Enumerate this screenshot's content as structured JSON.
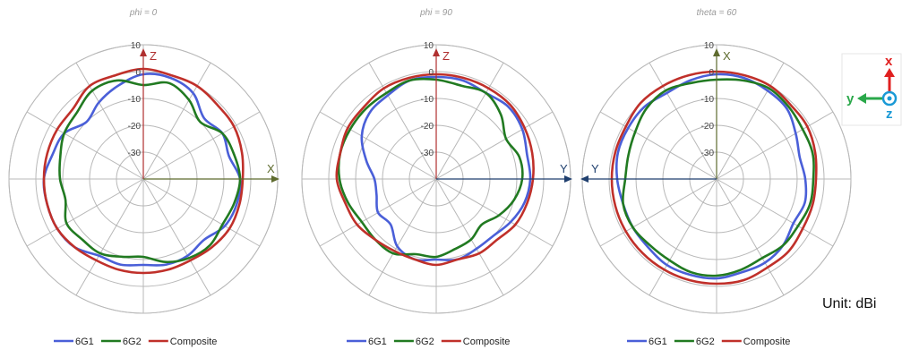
{
  "unit_label": "Unit: dBi",
  "coordinate_icon": {
    "x_label": "x",
    "y_label": "y",
    "z_label": "z",
    "x_color": "#e02020",
    "y_color": "#2aa84a",
    "z_color": "#1a9ad6"
  },
  "colors": {
    "6G1": "#4a5fd8",
    "6G2": "#217a21",
    "Composite": "#c0302a",
    "grid": "#b8b8b8",
    "axis_z": "#b03030",
    "axis_x": "#5e6b2e",
    "axis_y": "#1f3f6e"
  },
  "chart_data": [
    {
      "type": "polar",
      "title": "phi = 0",
      "rlim": [
        -40,
        10
      ],
      "rticks": [
        10,
        0,
        -10,
        -20,
        -30
      ],
      "axes": [
        {
          "label": "Z",
          "direction": "up",
          "color": "#b03030"
        },
        {
          "label": "X",
          "direction": "right",
          "color": "#5e6b2e"
        }
      ],
      "legend": [
        "6G1",
        "6G2",
        "Composite"
      ],
      "legend_position": "bottom",
      "series": [
        {
          "name": "6G1",
          "angles": [
            0,
            15,
            30,
            45,
            60,
            75,
            90,
            105,
            120,
            135,
            150,
            165,
            180,
            195,
            210,
            225,
            240,
            255,
            270,
            285,
            300,
            315,
            330,
            345
          ],
          "values": [
            -1,
            -1,
            -3,
            -8,
            -6,
            -7,
            -4,
            -4,
            -5,
            -8,
            -7,
            -7,
            -8,
            -7,
            -7,
            -4,
            -3,
            -3,
            -3,
            -5,
            -6,
            -10,
            -7,
            -4
          ]
        },
        {
          "name": "6G2",
          "angles": [
            0,
            15,
            30,
            45,
            60,
            75,
            90,
            105,
            120,
            135,
            150,
            165,
            180,
            195,
            210,
            225,
            240,
            255,
            270,
            285,
            300,
            315,
            330,
            345
          ],
          "values": [
            -5,
            -3,
            -6,
            -10,
            -6,
            -5,
            -4,
            -5,
            -6,
            -5,
            -6,
            -8,
            -11,
            -10,
            -8,
            -8,
            -7,
            -10,
            -9,
            -8,
            -6,
            -5,
            -2,
            -2
          ]
        },
        {
          "name": "Composite",
          "angles": [
            0,
            15,
            30,
            45,
            60,
            75,
            90,
            105,
            120,
            135,
            150,
            165,
            180,
            195,
            210,
            225,
            240,
            255,
            270,
            285,
            300,
            315,
            330,
            345
          ],
          "values": [
            1,
            0,
            0,
            -1,
            -1,
            -2,
            -3,
            -3,
            -3,
            -4,
            -5,
            -5,
            -5,
            -5,
            -5,
            -4,
            -3,
            -3,
            -3,
            -3,
            -3,
            -3,
            0,
            0
          ]
        }
      ]
    },
    {
      "type": "polar",
      "title": "phi = 90",
      "rlim": [
        -40,
        10
      ],
      "rticks": [
        10,
        0,
        -10,
        -20,
        -30
      ],
      "axes": [
        {
          "label": "Z",
          "direction": "up",
          "color": "#b03030"
        },
        {
          "label": "Y",
          "direction": "right",
          "color": "#1f3f6e"
        }
      ],
      "legend": [
        "6G1",
        "6G2",
        "Composite"
      ],
      "legend_position": "bottom",
      "series": [
        {
          "name": "6G1",
          "angles": [
            0,
            15,
            30,
            45,
            60,
            75,
            90,
            105,
            120,
            135,
            150,
            165,
            180,
            195,
            210,
            225,
            240,
            255,
            270,
            285,
            300,
            315,
            330,
            345
          ],
          "values": [
            -2,
            -2,
            -3,
            -2,
            -3,
            -5,
            -5,
            -6,
            -8,
            -10,
            -10,
            -9,
            -10,
            -9,
            -11,
            -16,
            -15,
            -17,
            -17,
            -13,
            -8,
            -5,
            -4,
            -2
          ]
        },
        {
          "name": "6G2",
          "angles": [
            0,
            15,
            30,
            45,
            60,
            75,
            90,
            105,
            120,
            135,
            150,
            165,
            180,
            195,
            210,
            225,
            240,
            255,
            270,
            285,
            300,
            315,
            330,
            345
          ],
          "values": [
            -3,
            -4,
            -3,
            -6,
            -10,
            -8,
            -8,
            -10,
            -13,
            -16,
            -14,
            -13,
            -11,
            -11,
            -8,
            -8,
            -8,
            -6,
            -4,
            -3,
            -3,
            -3,
            -3,
            -2
          ]
        },
        {
          "name": "Composite",
          "angles": [
            0,
            15,
            30,
            45,
            60,
            75,
            90,
            105,
            120,
            135,
            150,
            165,
            180,
            195,
            210,
            225,
            240,
            255,
            270,
            285,
            300,
            315,
            330,
            345
          ],
          "values": [
            -1,
            -1,
            -1,
            -1,
            -2,
            -3,
            -4,
            -5,
            -6,
            -8,
            -8,
            -9,
            -8,
            -9,
            -9,
            -8,
            -6,
            -5,
            -3,
            -3,
            -2,
            -2,
            -1,
            -1
          ]
        }
      ]
    },
    {
      "type": "polar",
      "title": "theta = 60",
      "rlim": [
        -40,
        10
      ],
      "rticks": [
        10,
        0,
        -10,
        -20,
        -30
      ],
      "axes": [
        {
          "label": "X",
          "direction": "up",
          "color": "#5e6b2e"
        },
        {
          "label": "Y",
          "direction": "left",
          "color": "#1f3f6e"
        }
      ],
      "legend": [
        "6G1",
        "6G2",
        "Composite"
      ],
      "legend_position": "bottom",
      "series": [
        {
          "name": "6G1",
          "angles": [
            0,
            15,
            30,
            45,
            60,
            75,
            90,
            105,
            120,
            135,
            150,
            165,
            180,
            195,
            210,
            225,
            240,
            255,
            270,
            285,
            300,
            315,
            330,
            345
          ],
          "values": [
            -1,
            -1,
            -2,
            -3,
            -6,
            -8,
            -7,
            -6,
            -7,
            -5,
            -4,
            -4,
            -3,
            -3,
            -3,
            -4,
            -4,
            -4,
            -3,
            -2,
            -2,
            -2,
            -3,
            -2
          ]
        },
        {
          "name": "6G2",
          "angles": [
            0,
            15,
            30,
            45,
            60,
            75,
            90,
            105,
            120,
            135,
            150,
            165,
            180,
            195,
            210,
            225,
            240,
            255,
            270,
            285,
            300,
            315,
            330,
            345
          ],
          "values": [
            -3,
            -2,
            -1,
            -2,
            -3,
            -3,
            -4,
            -4,
            -5,
            -5,
            -6,
            -5,
            -4,
            -4,
            -5,
            -5,
            -4,
            -4,
            -6,
            -6,
            -5,
            -3,
            -2,
            -3
          ]
        },
        {
          "name": "Composite",
          "angles": [
            0,
            15,
            30,
            45,
            60,
            75,
            90,
            105,
            120,
            135,
            150,
            165,
            180,
            195,
            210,
            225,
            240,
            255,
            270,
            285,
            300,
            315,
            330,
            345
          ],
          "values": [
            0,
            0,
            0,
            -1,
            -1,
            -2,
            -3,
            -3,
            -3,
            -2,
            -2,
            -1,
            -1,
            -1,
            -1,
            -1,
            -1,
            -1,
            -1,
            -1,
            -1,
            0,
            0,
            0
          ]
        }
      ]
    }
  ]
}
